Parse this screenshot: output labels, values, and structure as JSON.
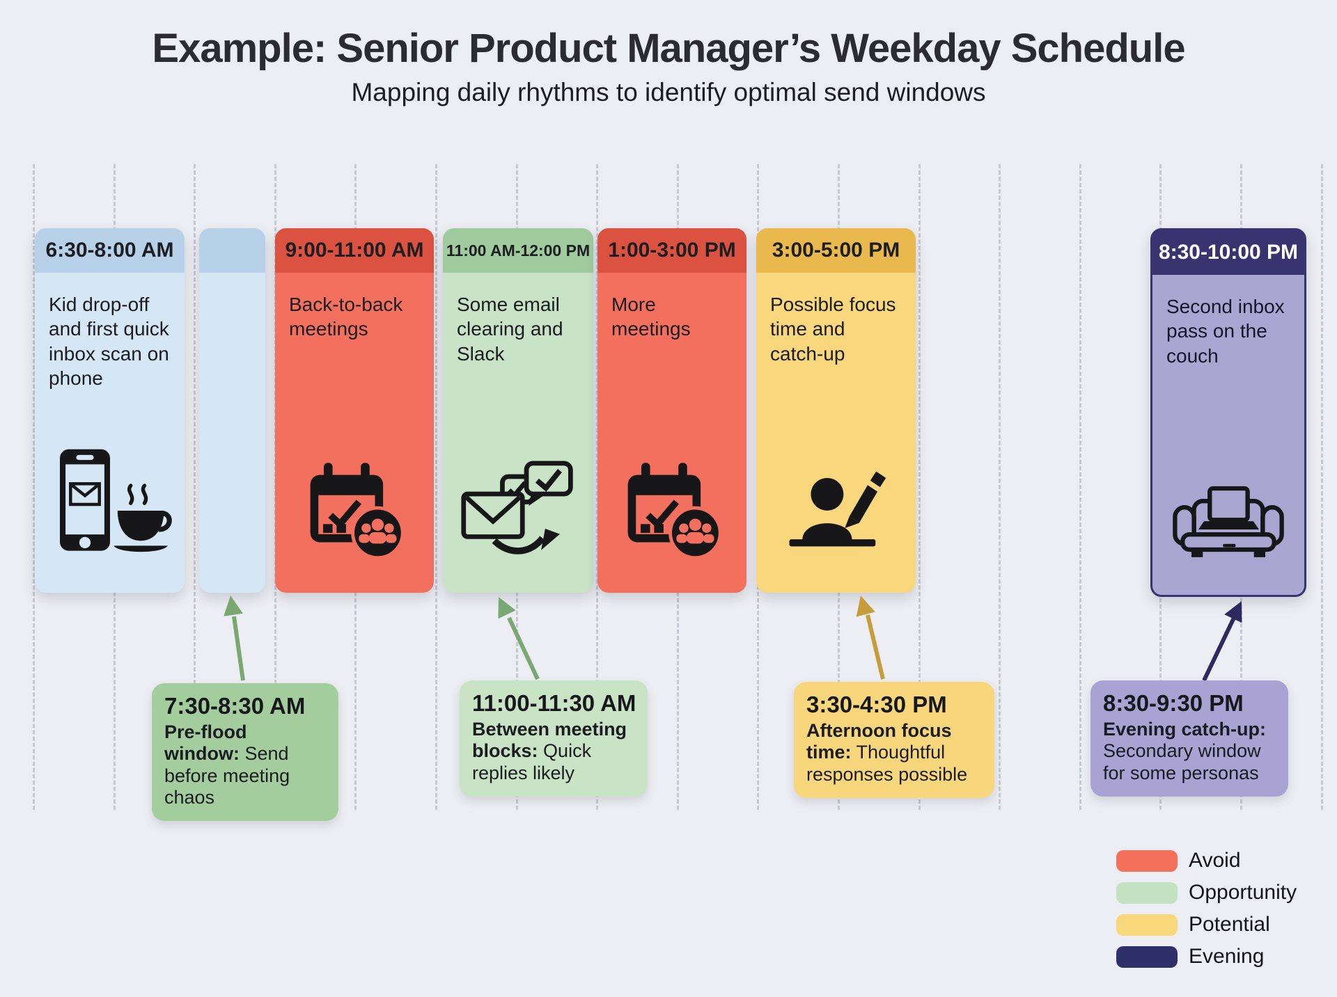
{
  "header": {
    "title": "Example: Senior Product Manager’s Weekday Schedule",
    "subtitle": "Mapping daily rhythms to identify optimal send windows"
  },
  "timeline_cards": [
    {
      "time": "6:30-8:00 AM",
      "description": "Kid drop-off and first quick inbox scan on phone",
      "icon": "phone-email-coffee-icon",
      "category": "morning-routine"
    },
    {
      "time": "",
      "description": "",
      "icon": "",
      "category": "morning-routine"
    },
    {
      "time": "9:00-11:00 AM",
      "description": "Back-to-back meetings",
      "icon": "calendar-meeting-icon",
      "category": "avoid"
    },
    {
      "time": "11:00 AM-12:00 PM",
      "description": "Some email clearing and Slack",
      "icon": "email-chat-icon",
      "category": "opportunity"
    },
    {
      "time": "1:00-3:00 PM",
      "description": "More meetings",
      "icon": "calendar-meeting-icon",
      "category": "avoid"
    },
    {
      "time": "3:00-5:00 PM",
      "description": "Possible focus time and catch-up",
      "icon": "person-writing-icon",
      "category": "potential"
    },
    {
      "time": "8:30-10:00 PM",
      "description": "Second inbox pass on the couch",
      "icon": "couch-laptop-icon",
      "category": "evening"
    }
  ],
  "callouts": [
    {
      "time": "7:30-8:30 AM",
      "label": "Pre-flood window:",
      "text": "Send before meeting chaos"
    },
    {
      "time": "11:00-11:30 AM",
      "label": "Between meeting blocks:",
      "text": "Quick replies likely"
    },
    {
      "time": "3:30-4:30 PM",
      "label": "Afternoon focus time:",
      "text": "Thoughtful responses possible"
    },
    {
      "time": "8:30-9:30 PM",
      "label": "Evening catch-up:",
      "text": "Secondary window for some personas"
    }
  ],
  "legend": {
    "items": [
      {
        "label": "Avoid",
        "color": "#f4705a"
      },
      {
        "label": "Opportunity",
        "color": "#c3e2c1"
      },
      {
        "label": "Potential",
        "color": "#f9d77b"
      },
      {
        "label": "Evening",
        "color": "#2f2f6a"
      }
    ]
  },
  "colors": {
    "background": "#edeef3",
    "card_blue_header": "#b6d1e8",
    "card_blue_body": "#d5e6f5",
    "card_red_header": "#dc5241",
    "card_red_body": "#f3705f",
    "card_green_header": "#a0cb9e",
    "card_green_body": "#c9e3c6",
    "card_yellow_header": "#e9b94d",
    "card_yellow_body": "#f8d77d",
    "card_purple_header": "#39336f",
    "card_purple_body": "#aba5d1",
    "arrow_green": "#7aa873",
    "arrow_gold": "#c79c3a",
    "arrow_navy": "#2e2a5e"
  }
}
